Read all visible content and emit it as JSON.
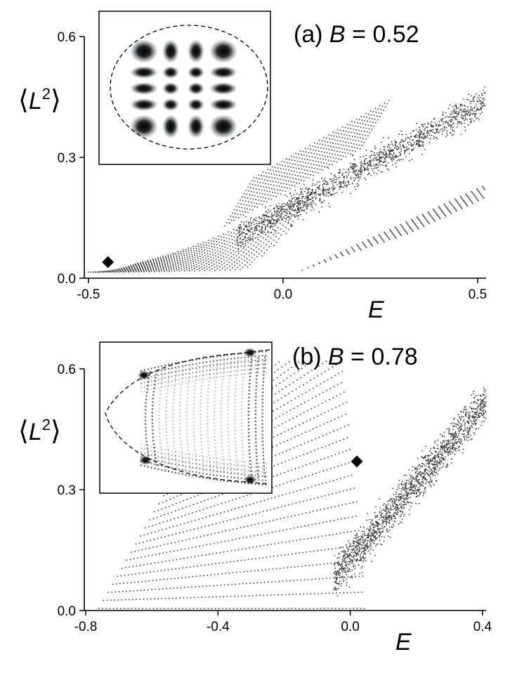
{
  "chart_data": [
    {
      "type": "scatter",
      "panel_label": "(a) B = 0.52",
      "panel_prefix": "(a)",
      "panel_var": "B",
      "panel_value": "= 0.52",
      "xlabel": "E",
      "ylabel_base": "L",
      "ylabel_sup": "2",
      "xlim": [
        -0.52,
        0.52
      ],
      "ylim": [
        0.0,
        0.62
      ],
      "xticks": [
        {
          "v": -0.5,
          "t": "-0.5"
        },
        {
          "v": 0.0,
          "t": "0.0"
        },
        {
          "v": 0.5,
          "t": "0.5"
        }
      ],
      "yticks": [
        {
          "v": 0.0,
          "t": "0.0"
        },
        {
          "v": 0.3,
          "t": "0.3"
        },
        {
          "v": 0.6,
          "t": "0.6"
        }
      ],
      "marker": {
        "x": -0.45,
        "y": 0.04
      },
      "inset": "elliptical billiard eigenstate density (grid pattern)",
      "point_color": "#333333"
    },
    {
      "type": "scatter",
      "panel_label": "(b) B = 0.78",
      "panel_prefix": "(b)",
      "panel_var": "B",
      "panel_value": "= 0.78",
      "xlabel": "E",
      "ylabel_base": "L",
      "ylabel_sup": "2",
      "xlim": [
        -0.8,
        0.41
      ],
      "ylim": [
        0.0,
        0.62
      ],
      "xticks": [
        {
          "v": -0.8,
          "t": "-0.8"
        },
        {
          "v": -0.4,
          "t": "-0.4"
        },
        {
          "v": 0.0,
          "t": "0.0"
        },
        {
          "v": 0.4,
          "t": "0.4"
        }
      ],
      "yticks": [
        {
          "v": 0.0,
          "t": "0.0"
        },
        {
          "v": 0.3,
          "t": "0.3"
        },
        {
          "v": 0.6,
          "t": "0.6"
        }
      ],
      "marker": {
        "x": 0.02,
        "y": 0.37
      },
      "inset": "truncated billiard eigenstate density (fringe pattern)",
      "point_color": "#333333"
    }
  ]
}
